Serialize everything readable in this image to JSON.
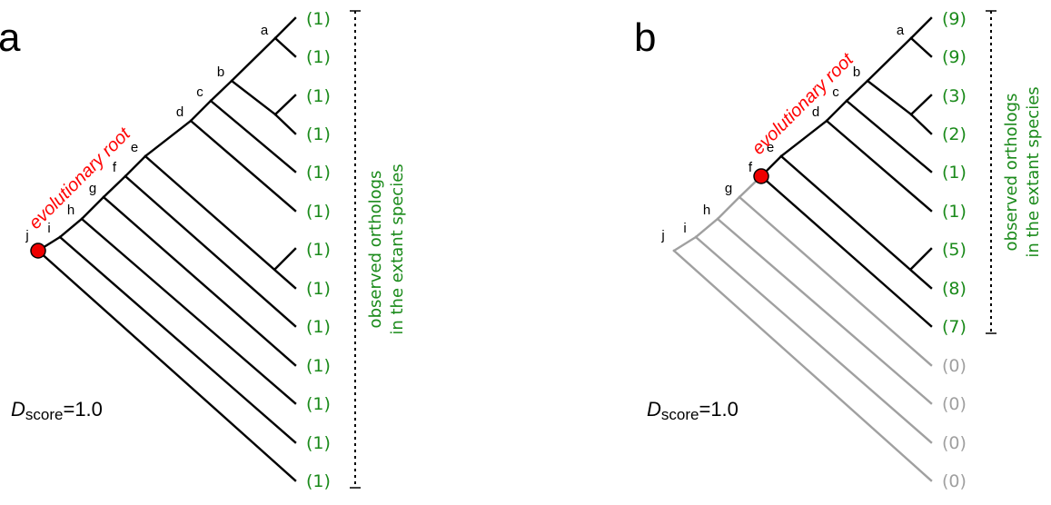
{
  "colors": {
    "branch_active": "#000000",
    "branch_inactive": "#a0a0a0",
    "count_active": "#1a8a1a",
    "count_inactive": "#a0a0a0",
    "root_marker": "#ee0000",
    "root_label": "#ff0000"
  },
  "panels": [
    {
      "letter": "a",
      "root_label": "evolutionary root",
      "root_node": "j",
      "score_symbol": "D",
      "score_subscript": "score",
      "score_value": "=1.0",
      "side_label_line1": "observed orthologs",
      "side_label_line2": "in the extant species",
      "internal_nodes": [
        "a",
        "b",
        "c",
        "d",
        "e",
        "f",
        "g",
        "h",
        "i",
        "j"
      ],
      "leaf_counts": [
        "(1)",
        "(1)",
        "(1)",
        "(1)",
        "(1)",
        "(1)",
        "(1)",
        "(1)",
        "(1)",
        "(1)",
        "(1)",
        "(1)",
        "(1)"
      ]
    },
    {
      "letter": "b",
      "root_label": "evolutionary root",
      "root_node": "f",
      "score_symbol": "D",
      "score_subscript": "score",
      "score_value": "=1.0",
      "side_label_line1": "observed orthologs",
      "side_label_line2": "in the extant species",
      "internal_nodes": [
        "a",
        "b",
        "c",
        "d",
        "e",
        "f",
        "g",
        "h",
        "i",
        "j"
      ],
      "leaf_counts": [
        "(9)",
        "(9)",
        "(3)",
        "(2)",
        "(1)",
        "(1)",
        "(5)",
        "(8)",
        "(7)",
        "(0)",
        "(0)",
        "(0)",
        "(0)"
      ]
    }
  ]
}
